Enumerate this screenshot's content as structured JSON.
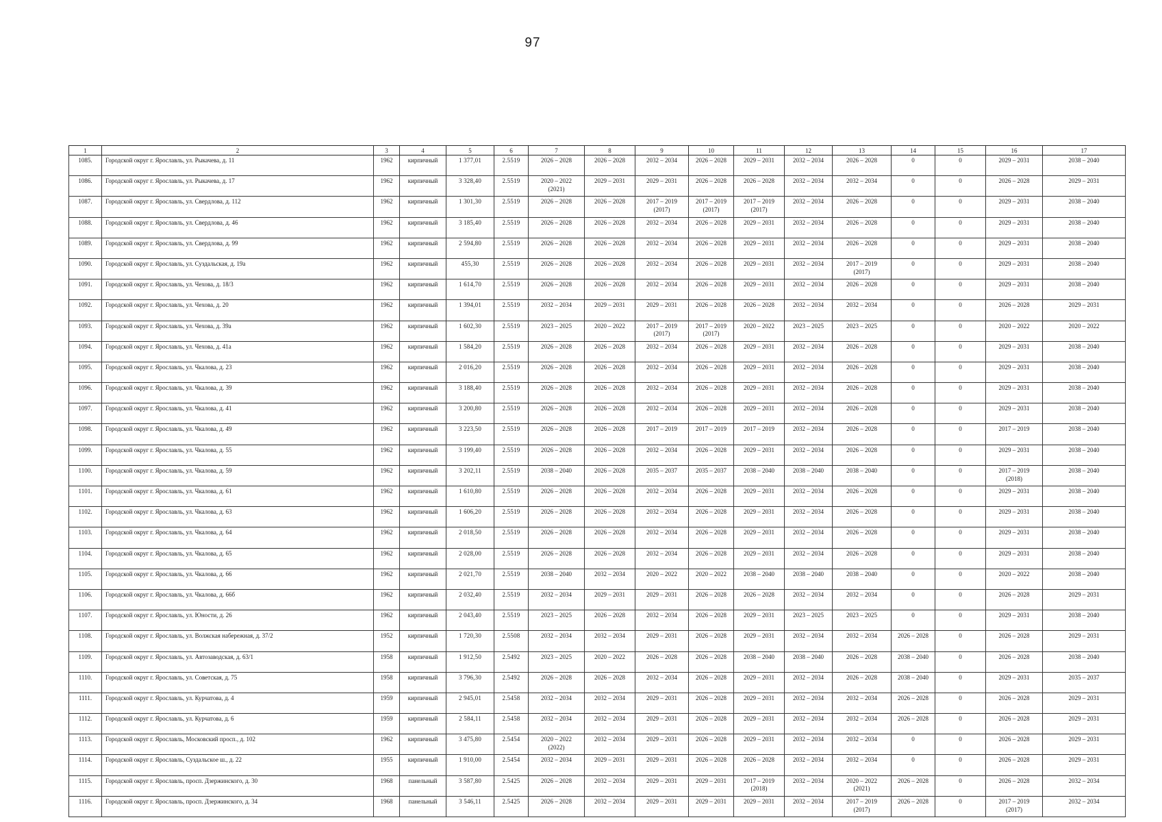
{
  "page": {
    "number": "97"
  },
  "table": {
    "header": [
      "1",
      "2",
      "3",
      "4",
      "5",
      "6",
      "7",
      "8",
      "9",
      "10",
      "11",
      "12",
      "13",
      "14",
      "15",
      "16",
      "17"
    ],
    "col_keys": [
      "n",
      "address",
      "year",
      "material",
      "area",
      "coef",
      "c7",
      "c8",
      "c9",
      "c10",
      "c11",
      "c12",
      "c13",
      "c14",
      "c15",
      "c16",
      "c17"
    ],
    "rows": [
      {
        "n": "1085.",
        "address": "Городской округ г. Ярославль, ул. Рыкачева, д. 11",
        "year": "1962",
        "material": "кирпичный",
        "area": "1 377,01",
        "coef": "2.5519",
        "c7": "2026 – 2028",
        "c8": "2026 – 2028",
        "c9": "2032 – 2034",
        "c10": "2026 – 2028",
        "c11": "2029 – 2031",
        "c12": "2032 – 2034",
        "c13": "2026 – 2028",
        "c14": "0",
        "c15": "0",
        "c16": "2029 – 2031",
        "c17": "2038 – 2040"
      },
      {
        "n": "1086.",
        "address": "Городской округ г. Ярославль, ул. Рыкачева, д. 17",
        "year": "1962",
        "material": "кирпичный",
        "area": "3 328,40",
        "coef": "2.5519",
        "c7": "2020 – 2022\n(2021)",
        "c8": "2029 – 2031",
        "c9": "2029 – 2031",
        "c10": "2026 – 2028",
        "c11": "2026 – 2028",
        "c12": "2032 – 2034",
        "c13": "2032 – 2034",
        "c14": "0",
        "c15": "0",
        "c16": "2026 – 2028",
        "c17": "2029 – 2031"
      },
      {
        "n": "1087.",
        "address": "Городской округ г. Ярославль, ул. Свердлова, д. 112",
        "year": "1962",
        "material": "кирпичный",
        "area": "1 301,30",
        "coef": "2.5519",
        "c7": "2026 – 2028",
        "c8": "2026 – 2028",
        "c9": "2017 – 2019\n(2017)",
        "c10": "2017 – 2019\n(2017)",
        "c11": "2017 – 2019\n(2017)",
        "c12": "2032 – 2034",
        "c13": "2026 – 2028",
        "c14": "0",
        "c15": "0",
        "c16": "2029 – 2031",
        "c17": "2038 – 2040"
      },
      {
        "n": "1088.",
        "address": "Городской округ г. Ярославль, ул. Свердлова, д. 46",
        "year": "1962",
        "material": "кирпичный",
        "area": "3 185,40",
        "coef": "2.5519",
        "c7": "2026 – 2028",
        "c8": "2026 – 2028",
        "c9": "2032 – 2034",
        "c10": "2026 – 2028",
        "c11": "2029 – 2031",
        "c12": "2032 – 2034",
        "c13": "2026 – 2028",
        "c14": "0",
        "c15": "0",
        "c16": "2029 – 2031",
        "c17": "2038 – 2040"
      },
      {
        "n": "1089.",
        "address": "Городской округ г. Ярославль, ул. Свердлова, д. 99",
        "year": "1962",
        "material": "кирпичный",
        "area": "2 594,80",
        "coef": "2.5519",
        "c7": "2026 – 2028",
        "c8": "2026 – 2028",
        "c9": "2032 – 2034",
        "c10": "2026 – 2028",
        "c11": "2029 – 2031",
        "c12": "2032 – 2034",
        "c13": "2026 – 2028",
        "c14": "0",
        "c15": "0",
        "c16": "2029 – 2031",
        "c17": "2038 – 2040"
      },
      {
        "n": "1090.",
        "address": "Городской округ г. Ярославль, ул. Суздальская, д. 19а",
        "year": "1962",
        "material": "кирпичный",
        "area": "455,30",
        "coef": "2.5519",
        "c7": "2026 – 2028",
        "c8": "2026 – 2028",
        "c9": "2032 – 2034",
        "c10": "2026 – 2028",
        "c11": "2029 – 2031",
        "c12": "2032 – 2034",
        "c13": "2017 – 2019\n(2017)",
        "c14": "0",
        "c15": "0",
        "c16": "2029 – 2031",
        "c17": "2038 – 2040"
      },
      {
        "n": "1091.",
        "address": "Городской округ г. Ярославль, ул. Чехова, д. 18/3",
        "year": "1962",
        "material": "кирпичный",
        "area": "1 614,70",
        "coef": "2.5519",
        "c7": "2026 – 2028",
        "c8": "2026 – 2028",
        "c9": "2032 – 2034",
        "c10": "2026 – 2028",
        "c11": "2029 – 2031",
        "c12": "2032 – 2034",
        "c13": "2026 – 2028",
        "c14": "0",
        "c15": "0",
        "c16": "2029 – 2031",
        "c17": "2038 – 2040"
      },
      {
        "n": "1092.",
        "address": "Городской округ г. Ярославль, ул. Чехова, д. 20",
        "year": "1962",
        "material": "кирпичный",
        "area": "1 394,01",
        "coef": "2.5519",
        "c7": "2032 – 2034",
        "c8": "2029 – 2031",
        "c9": "2029 – 2031",
        "c10": "2026 – 2028",
        "c11": "2026 – 2028",
        "c12": "2032 – 2034",
        "c13": "2032 – 2034",
        "c14": "0",
        "c15": "0",
        "c16": "2026 – 2028",
        "c17": "2029 – 2031"
      },
      {
        "n": "1093.",
        "address": "Городской округ г. Ярославль, ул. Чехова, д. 39а",
        "year": "1962",
        "material": "кирпичный",
        "area": "1 602,30",
        "coef": "2.5519",
        "c7": "2023 – 2025",
        "c8": "2020 – 2022",
        "c9": "2017 – 2019\n(2017)",
        "c10": "2017 – 2019\n(2017)",
        "c11": "2020 – 2022",
        "c12": "2023 – 2025",
        "c13": "2023 – 2025",
        "c14": "0",
        "c15": "0",
        "c16": "2020 – 2022",
        "c17": "2020 – 2022"
      },
      {
        "n": "1094.",
        "address": "Городской округ г. Ярославль, ул. Чехова, д. 41а",
        "year": "1962",
        "material": "кирпичный",
        "area": "1 584,20",
        "coef": "2.5519",
        "c7": "2026 – 2028",
        "c8": "2026 – 2028",
        "c9": "2032 – 2034",
        "c10": "2026 – 2028",
        "c11": "2029 – 2031",
        "c12": "2032 – 2034",
        "c13": "2026 – 2028",
        "c14": "0",
        "c15": "0",
        "c16": "2029 – 2031",
        "c17": "2038 – 2040"
      },
      {
        "n": "1095.",
        "address": "Городской округ г. Ярославль, ул. Чкалова, д. 23",
        "year": "1962",
        "material": "кирпичный",
        "area": "2 016,20",
        "coef": "2.5519",
        "c7": "2026 – 2028",
        "c8": "2026 – 2028",
        "c9": "2032 – 2034",
        "c10": "2026 – 2028",
        "c11": "2029 – 2031",
        "c12": "2032 – 2034",
        "c13": "2026 – 2028",
        "c14": "0",
        "c15": "0",
        "c16": "2029 – 2031",
        "c17": "2038 – 2040"
      },
      {
        "n": "1096.",
        "address": "Городской округ г. Ярославль, ул. Чкалова, д. 39",
        "year": "1962",
        "material": "кирпичный",
        "area": "3 188,40",
        "coef": "2.5519",
        "c7": "2026 – 2028",
        "c8": "2026 – 2028",
        "c9": "2032 – 2034",
        "c10": "2026 – 2028",
        "c11": "2029 – 2031",
        "c12": "2032 – 2034",
        "c13": "2026 – 2028",
        "c14": "0",
        "c15": "0",
        "c16": "2029 – 2031",
        "c17": "2038 – 2040"
      },
      {
        "n": "1097.",
        "address": "Городской округ г. Ярославль, ул. Чкалова, д. 41",
        "year": "1962",
        "material": "кирпичный",
        "area": "3 200,80",
        "coef": "2.5519",
        "c7": "2026 – 2028",
        "c8": "2026 – 2028",
        "c9": "2032 – 2034",
        "c10": "2026 – 2028",
        "c11": "2029 – 2031",
        "c12": "2032 – 2034",
        "c13": "2026 – 2028",
        "c14": "0",
        "c15": "0",
        "c16": "2029 – 2031",
        "c17": "2038 – 2040"
      },
      {
        "n": "1098.",
        "address": "Городской округ г. Ярославль, ул. Чкалова, д. 49",
        "year": "1962",
        "material": "кирпичный",
        "area": "3 223,50",
        "coef": "2.5519",
        "c7": "2026 – 2028",
        "c8": "2026 – 2028",
        "c9": "2017 – 2019",
        "c10": "2017 – 2019",
        "c11": "2017 – 2019",
        "c12": "2032 – 2034",
        "c13": "2026 – 2028",
        "c14": "0",
        "c15": "0",
        "c16": "2017 – 2019",
        "c17": "2038 – 2040"
      },
      {
        "n": "1099.",
        "address": "Городской округ г. Ярославль, ул. Чкалова, д. 55",
        "year": "1962",
        "material": "кирпичный",
        "area": "3 199,40",
        "coef": "2.5519",
        "c7": "2026 – 2028",
        "c8": "2026 – 2028",
        "c9": "2032 – 2034",
        "c10": "2026 – 2028",
        "c11": "2029 – 2031",
        "c12": "2032 – 2034",
        "c13": "2026 – 2028",
        "c14": "0",
        "c15": "0",
        "c16": "2029 – 2031",
        "c17": "2038 – 2040"
      },
      {
        "n": "1100.",
        "address": "Городской округ г. Ярославль, ул. Чкалова, д. 59",
        "year": "1962",
        "material": "кирпичный",
        "area": "3 202,11",
        "coef": "2.5519",
        "c7": "2038 – 2040",
        "c8": "2026 – 2028",
        "c9": "2035 – 2037",
        "c10": "2035 – 2037",
        "c11": "2038 – 2040",
        "c12": "2038 – 2040",
        "c13": "2038 – 2040",
        "c14": "0",
        "c15": "0",
        "c16": "2017 – 2019\n(2018)",
        "c17": "2038 – 2040"
      },
      {
        "n": "1101.",
        "address": "Городской округ г. Ярославль, ул. Чкалова, д. 61",
        "year": "1962",
        "material": "кирпичный",
        "area": "1 610,80",
        "coef": "2.5519",
        "c7": "2026 – 2028",
        "c8": "2026 – 2028",
        "c9": "2032 – 2034",
        "c10": "2026 – 2028",
        "c11": "2029 – 2031",
        "c12": "2032 – 2034",
        "c13": "2026 – 2028",
        "c14": "0",
        "c15": "0",
        "c16": "2029 – 2031",
        "c17": "2038 – 2040"
      },
      {
        "n": "1102.",
        "address": "Городской округ г. Ярославль, ул. Чкалова, д. 63",
        "year": "1962",
        "material": "кирпичный",
        "area": "1 606,20",
        "coef": "2.5519",
        "c7": "2026 – 2028",
        "c8": "2026 – 2028",
        "c9": "2032 – 2034",
        "c10": "2026 – 2028",
        "c11": "2029 – 2031",
        "c12": "2032 – 2034",
        "c13": "2026 – 2028",
        "c14": "0",
        "c15": "0",
        "c16": "2029 – 2031",
        "c17": "2038 – 2040"
      },
      {
        "n": "1103.",
        "address": "Городской округ г. Ярославль, ул. Чкалова, д. 64",
        "year": "1962",
        "material": "кирпичный",
        "area": "2 018,50",
        "coef": "2.5519",
        "c7": "2026 – 2028",
        "c8": "2026 – 2028",
        "c9": "2032 – 2034",
        "c10": "2026 – 2028",
        "c11": "2029 – 2031",
        "c12": "2032 – 2034",
        "c13": "2026 – 2028",
        "c14": "0",
        "c15": "0",
        "c16": "2029 – 2031",
        "c17": "2038 – 2040"
      },
      {
        "n": "1104.",
        "address": "Городской округ г. Ярославль, ул. Чкалова, д. 65",
        "year": "1962",
        "material": "кирпичный",
        "area": "2 028,00",
        "coef": "2.5519",
        "c7": "2026 – 2028",
        "c8": "2026 – 2028",
        "c9": "2032 – 2034",
        "c10": "2026 – 2028",
        "c11": "2029 – 2031",
        "c12": "2032 – 2034",
        "c13": "2026 – 2028",
        "c14": "0",
        "c15": "0",
        "c16": "2029 – 2031",
        "c17": "2038 – 2040"
      },
      {
        "n": "1105.",
        "address": "Городской округ г. Ярославль, ул. Чкалова, д. 66",
        "year": "1962",
        "material": "кирпичный",
        "area": "2 021,70",
        "coef": "2.5519",
        "c7": "2038 – 2040",
        "c8": "2032 – 2034",
        "c9": "2020 – 2022",
        "c10": "2020 – 2022",
        "c11": "2038 – 2040",
        "c12": "2038 – 2040",
        "c13": "2038 – 2040",
        "c14": "0",
        "c15": "0",
        "c16": "2020 – 2022",
        "c17": "2038 – 2040"
      },
      {
        "n": "1106.",
        "address": "Городской округ г. Ярославль, ул. Чкалова, д. 66б",
        "year": "1962",
        "material": "кирпичный",
        "area": "2 032,40",
        "coef": "2.5519",
        "c7": "2032 – 2034",
        "c8": "2029 – 2031",
        "c9": "2029 – 2031",
        "c10": "2026 – 2028",
        "c11": "2026 – 2028",
        "c12": "2032 – 2034",
        "c13": "2032 – 2034",
        "c14": "0",
        "c15": "0",
        "c16": "2026 – 2028",
        "c17": "2029 – 2031"
      },
      {
        "n": "1107.",
        "address": "Городской округ г. Ярославль, ул. Юности, д. 26",
        "year": "1962",
        "material": "кирпичный",
        "area": "2 043,40",
        "coef": "2.5519",
        "c7": "2023 – 2025",
        "c8": "2026 – 2028",
        "c9": "2032 – 2034",
        "c10": "2026 – 2028",
        "c11": "2029 – 2031",
        "c12": "2023 – 2025",
        "c13": "2023 – 2025",
        "c14": "0",
        "c15": "0",
        "c16": "2029 – 2031",
        "c17": "2038 – 2040"
      },
      {
        "n": "1108.",
        "address": "Городской округ г. Ярославль, ул. Волжская набережная, д. 37/2",
        "year": "1952",
        "material": "кирпичный",
        "area": "1 720,30",
        "coef": "2.5508",
        "c7": "2032 – 2034",
        "c8": "2032 – 2034",
        "c9": "2029 – 2031",
        "c10": "2026 – 2028",
        "c11": "2029 – 2031",
        "c12": "2032 – 2034",
        "c13": "2032 – 2034",
        "c14": "2026 – 2028",
        "c15": "0",
        "c16": "2026 – 2028",
        "c17": "2029 – 2031"
      },
      {
        "n": "1109.",
        "address": "Городской округ г. Ярославль, ул. Автозаводская, д. 63/1",
        "year": "1958",
        "material": "кирпичный",
        "area": "1 912,50",
        "coef": "2.5492",
        "c7": "2023 – 2025",
        "c8": "2020 – 2022",
        "c9": "2026 – 2028",
        "c10": "2026 – 2028",
        "c11": "2038 – 2040",
        "c12": "2038 – 2040",
        "c13": "2026 – 2028",
        "c14": "2038 – 2040",
        "c15": "0",
        "c16": "2026 – 2028",
        "c17": "2038 – 2040"
      },
      {
        "n": "1110.",
        "address": "Городской округ г. Ярославль, ул. Советская, д. 75",
        "year": "1958",
        "material": "кирпичный",
        "area": "3 796,30",
        "coef": "2.5492",
        "c7": "2026 – 2028",
        "c8": "2026 – 2028",
        "c9": "2032 – 2034",
        "c10": "2026 – 2028",
        "c11": "2029 – 2031",
        "c12": "2032 – 2034",
        "c13": "2026 – 2028",
        "c14": "2038 – 2040",
        "c15": "0",
        "c16": "2029 – 2031",
        "c17": "2035 – 2037"
      },
      {
        "n": "1111.",
        "address": "Городской округ г. Ярославль, ул. Курчатова, д. 4",
        "year": "1959",
        "material": "кирпичный",
        "area": "2 945,01",
        "coef": "2.5458",
        "c7": "2032 – 2034",
        "c8": "2032 – 2034",
        "c9": "2029 – 2031",
        "c10": "2026 – 2028",
        "c11": "2029 – 2031",
        "c12": "2032 – 2034",
        "c13": "2032 – 2034",
        "c14": "2026 – 2028",
        "c15": "0",
        "c16": "2026 – 2028",
        "c17": "2029 – 2031"
      },
      {
        "n": "1112.",
        "address": "Городской округ г. Ярославль, ул. Курчатова, д. 6",
        "year": "1959",
        "material": "кирпичный",
        "area": "2 584,11",
        "coef": "2.5458",
        "c7": "2032 – 2034",
        "c8": "2032 – 2034",
        "c9": "2029 – 2031",
        "c10": "2026 – 2028",
        "c11": "2029 – 2031",
        "c12": "2032 – 2034",
        "c13": "2032 – 2034",
        "c14": "2026 – 2028",
        "c15": "0",
        "c16": "2026 – 2028",
        "c17": "2029 – 2031"
      },
      {
        "n": "1113.",
        "address": "Городской округ г. Ярославль, Московский просп., д. 102",
        "year": "1962",
        "material": "кирпичный",
        "area": "3 475,80",
        "coef": "2.5454",
        "c7": "2020 – 2022\n(2022)",
        "c8": "2032 – 2034",
        "c9": "2029 – 2031",
        "c10": "2026 – 2028",
        "c11": "2029 – 2031",
        "c12": "2032 – 2034",
        "c13": "2032 – 2034",
        "c14": "0",
        "c15": "0",
        "c16": "2026 – 2028",
        "c17": "2029 – 2031"
      },
      {
        "n": "1114.",
        "address": "Городской округ г. Ярославль, Суздальское ш., д. 22",
        "year": "1955",
        "material": "кирпичный",
        "area": "1 910,00",
        "coef": "2.5454",
        "c7": "2032 – 2034",
        "c8": "2029 – 2031",
        "c9": "2029 – 2031",
        "c10": "2026 – 2028",
        "c11": "2026 – 2028",
        "c12": "2032 – 2034",
        "c13": "2032 – 2034",
        "c14": "0",
        "c15": "0",
        "c16": "2026 – 2028",
        "c17": "2029 – 2031"
      },
      {
        "n": "1115.",
        "address": "Городской округ г. Ярославль, просп. Дзержинского, д. 30",
        "year": "1968",
        "material": "панельный",
        "area": "3 587,80",
        "coef": "2.5425",
        "c7": "2026 – 2028",
        "c8": "2032 – 2034",
        "c9": "2029 – 2031",
        "c10": "2029 – 2031",
        "c11": "2017 – 2019\n(2018)",
        "c12": "2032 – 2034",
        "c13": "2020 – 2022\n(2021)",
        "c14": "2026 – 2028",
        "c15": "0",
        "c16": "2026 – 2028",
        "c17": "2032 – 2034"
      },
      {
        "n": "1116.",
        "address": "Городской округ г. Ярославль, просп. Дзержинского, д. 34",
        "year": "1968",
        "material": "панельный",
        "area": "3 546,11",
        "coef": "2.5425",
        "c7": "2026 – 2028",
        "c8": "2032 – 2034",
        "c9": "2029 – 2031",
        "c10": "2029 – 2031",
        "c11": "2029 – 2031",
        "c12": "2032 – 2034",
        "c13": "2017 – 2019\n(2017)",
        "c14": "2026 – 2028",
        "c15": "0",
        "c16": "2017 – 2019\n(2017)",
        "c17": "2032 – 2034"
      }
    ]
  }
}
